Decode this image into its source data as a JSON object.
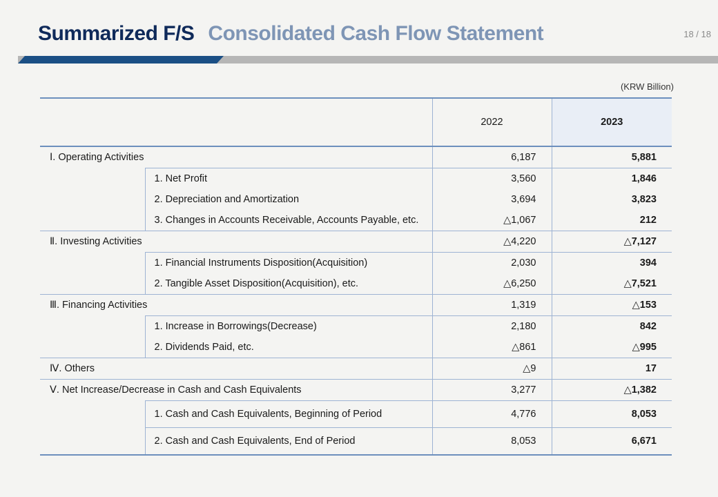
{
  "header": {
    "title_main": "Summarized F/S",
    "title_sub": "Consolidated Cash Flow Statement",
    "page": "18 / 18"
  },
  "unit_note": "(KRW Billion)",
  "columns": [
    "2022",
    "2023"
  ],
  "rows": [
    {
      "label": "Ⅰ. Operating Activities",
      "v2022": "6,187",
      "v2023": "5,881"
    },
    {
      "label": "1. Net Profit",
      "v2022": "3,560",
      "v2023": "1,846"
    },
    {
      "label": "2. Depreciation and Amortization",
      "v2022": "3,694",
      "v2023": "3,823"
    },
    {
      "label": "3. Changes in Accounts Receivable, Accounts Payable, etc.",
      "v2022": "△1,067",
      "v2023": "212"
    },
    {
      "label": "Ⅱ. Investing Activities",
      "v2022": "△4,220",
      "v2023": "△7,127"
    },
    {
      "label": "1. Financial Instruments Disposition(Acquisition)",
      "v2022": "2,030",
      "v2023": "394"
    },
    {
      "label": "2. Tangible Asset Disposition(Acquisition), etc.",
      "v2022": "△6,250",
      "v2023": "△7,521"
    },
    {
      "label": "Ⅲ. Financing Activities",
      "v2022": "1,319",
      "v2023": "△153"
    },
    {
      "label": "1. Increase in Borrowings(Decrease)",
      "v2022": "2,180",
      "v2023": "842"
    },
    {
      "label": "2. Dividends Paid, etc.",
      "v2022": "△861",
      "v2023": "△995"
    },
    {
      "label": "Ⅳ. Others",
      "v2022": "△9",
      "v2023": "17"
    },
    {
      "label": "Ⅴ. Net Increase/Decrease in Cash and Cash Equivalents",
      "v2022": "3,277",
      "v2023": "△1,382"
    },
    {
      "label": "1. Cash and Cash Equivalents, Beginning of Period",
      "v2022": "4,776",
      "v2023": "8,053"
    },
    {
      "label": "2. Cash and Cash Equivalents, End of Period",
      "v2022": "8,053",
      "v2023": "6,671"
    }
  ],
  "colors": {
    "title": "#0f2a5a",
    "subtitle": "#7e95b5",
    "accent": "#1b4f85",
    "rule": "#b6b6b6",
    "highlight_col": "#e9eef6"
  }
}
